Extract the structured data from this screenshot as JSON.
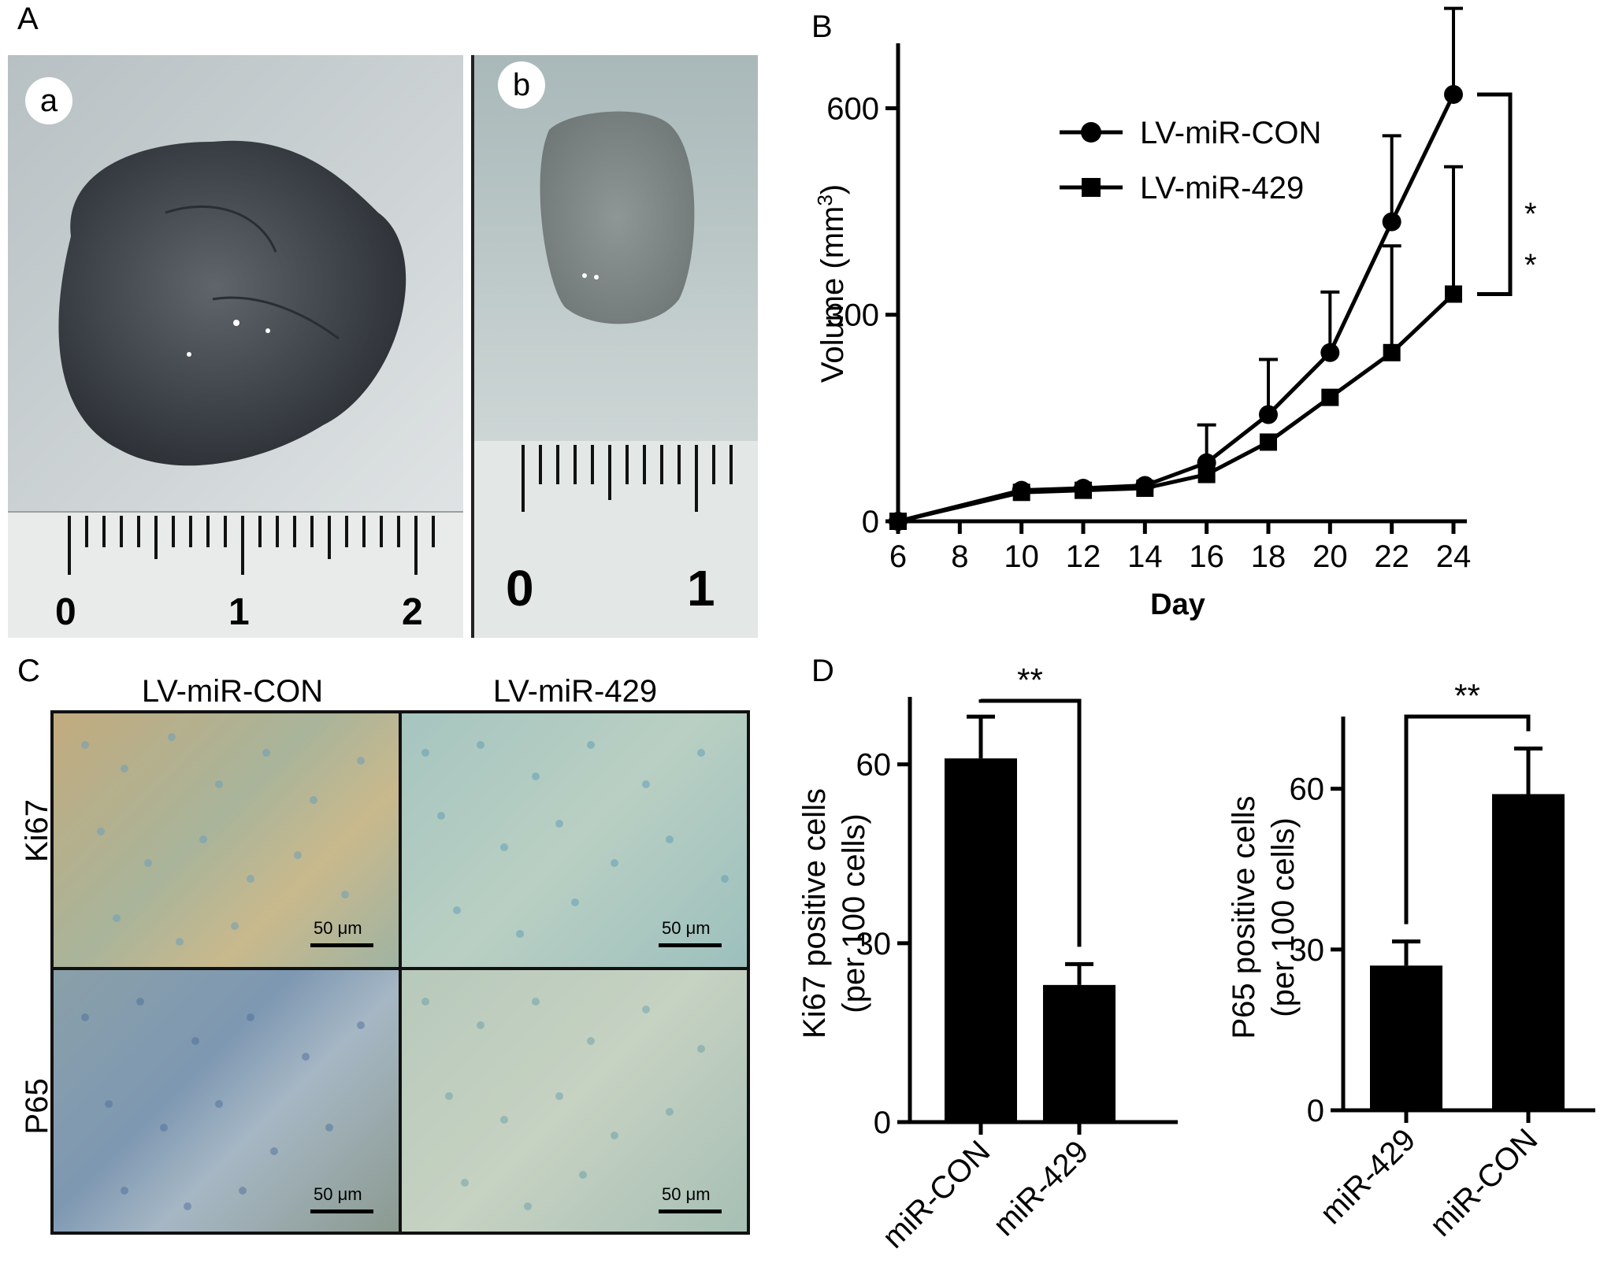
{
  "panels": {
    "A": {
      "letter": "A",
      "photo_a_label": "a",
      "photo_b_label": "b",
      "ruler_a_numbers": [
        "0",
        "1",
        "2"
      ],
      "ruler_b_numbers": [
        "0",
        "1"
      ]
    },
    "B": {
      "letter": "B"
    },
    "C": {
      "letter": "C",
      "col_headers": [
        "LV-miR-CON",
        "LV-miR-429"
      ],
      "row_headers": [
        "Ki67",
        "P65"
      ],
      "scale_label": "50 μm",
      "colors": {
        "ki67_con": "#b9a77a",
        "ki67_429": "#a9c6bd",
        "p65_con": "#7f99ad",
        "p65_429": "#b6c8bb"
      }
    },
    "D": {
      "letter": "D"
    }
  },
  "chart_data": [
    {
      "id": "B",
      "type": "line",
      "xlabel": "Day",
      "ylabel": "Volume (mm",
      "ylabel_sup": "3",
      "ylabel_close": ")",
      "xlim": [
        6,
        24
      ],
      "ylim": [
        0,
        700
      ],
      "x_ticks": [
        6,
        8,
        10,
        12,
        14,
        16,
        18,
        20,
        22,
        24
      ],
      "y_ticks": [
        0,
        300,
        600
      ],
      "legend_position": "top-right",
      "series": [
        {
          "name": "LV-miR-CON",
          "marker": "circle",
          "x": [
            6,
            10,
            12,
            14,
            16,
            18,
            20,
            22,
            24
          ],
          "y": [
            0,
            45,
            48,
            52,
            85,
            155,
            245,
            435,
            620
          ],
          "err": [
            0,
            0,
            0,
            0,
            55,
            80,
            88,
            125,
            125
          ]
        },
        {
          "name": "LV-miR-429",
          "marker": "square",
          "x": [
            6,
            10,
            12,
            14,
            16,
            18,
            20,
            22,
            24
          ],
          "y": [
            0,
            42,
            45,
            48,
            68,
            115,
            180,
            245,
            330
          ],
          "err": [
            0,
            0,
            0,
            0,
            0,
            0,
            0,
            155,
            185
          ]
        }
      ],
      "significance": [
        "*",
        "*"
      ]
    },
    {
      "id": "D-left",
      "type": "bar",
      "ylabel": "Ki67 positive cells",
      "ylabel2": "(per 100 cells)",
      "categories": [
        "miR-CON",
        "miR-429"
      ],
      "values": [
        61,
        23
      ],
      "errors": [
        7,
        3.5
      ],
      "y_ticks": [
        0,
        30,
        60
      ],
      "ylim": [
        0,
        70
      ],
      "significance": "**"
    },
    {
      "id": "D-right",
      "type": "bar",
      "ylabel": "P65 positive cells",
      "ylabel2": "(per 100 cells)",
      "categories": [
        "miR-429",
        "miR-CON"
      ],
      "values": [
        27,
        59
      ],
      "errors": [
        4.5,
        8.5
      ],
      "y_ticks": [
        0,
        30,
        60
      ],
      "ylim": [
        0,
        72
      ],
      "significance": "**"
    }
  ]
}
